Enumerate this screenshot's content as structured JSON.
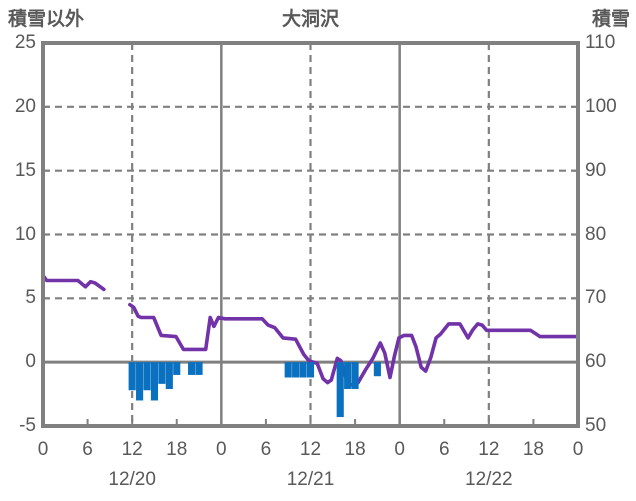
{
  "header": {
    "left_axis_title": "積雪以外",
    "chart_title": "大洞沢",
    "right_axis_title": "積雪"
  },
  "chart_data": {
    "type": "line",
    "title": "大洞沢",
    "left_axis": {
      "title": "積雪以外",
      "tick_labels": [
        "25",
        "20",
        "15",
        "10",
        "5",
        "0",
        "-5"
      ],
      "tick_values": [
        25,
        20,
        15,
        10,
        5,
        0,
        -5
      ],
      "range": [
        -5,
        25
      ]
    },
    "right_axis": {
      "title": "積雪",
      "tick_labels": [
        "110",
        "100",
        "90",
        "80",
        "70",
        "60",
        "50"
      ],
      "tick_values": [
        110,
        100,
        90,
        80,
        70,
        60,
        50
      ],
      "range": [
        50,
        110
      ]
    },
    "x_axis": {
      "range_hours": [
        0,
        72
      ],
      "tick_hours": [
        0,
        6,
        12,
        18,
        24,
        30,
        36,
        42,
        48,
        54,
        60,
        66,
        72
      ],
      "tick_labels": [
        "0",
        "6",
        "12",
        "18",
        "0",
        "6",
        "12",
        "18",
        "0",
        "6",
        "12",
        "18",
        "0"
      ],
      "date_labels": [
        {
          "label": "12/20",
          "hour": 12
        },
        {
          "label": "12/21",
          "hour": 36
        },
        {
          "label": "12/22",
          "hour": 60
        }
      ]
    },
    "gridlines": {
      "horizontal_dashed_values": [
        20,
        15,
        10,
        5
      ],
      "zero_line_value": 0,
      "vertical_dashed_hours": [
        12,
        36,
        60
      ],
      "vertical_solid_hours": [
        24,
        48
      ],
      "grid_color": "#808080"
    },
    "colors": {
      "line": "#7232a8",
      "bar": "#0a70c0",
      "border": "#808080",
      "text": "#595959"
    },
    "series": [
      {
        "name": "purple-line",
        "type": "line",
        "axis": "left",
        "color": "#7232a8",
        "segments": [
          [
            [
              0,
              6.8
            ],
            [
              0.5,
              6.4
            ],
            [
              4.7,
              6.4
            ],
            [
              5.7,
              5.9
            ],
            [
              6.4,
              6.3
            ],
            [
              7.0,
              6.2
            ],
            [
              8.2,
              5.7
            ]
          ],
          [
            [
              11.7,
              4.5
            ],
            [
              12.2,
              4.3
            ],
            [
              12.8,
              3.6
            ],
            [
              13.2,
              3.5
            ],
            [
              14.9,
              3.5
            ],
            [
              15.9,
              2.1
            ],
            [
              17.9,
              2.0
            ],
            [
              18.9,
              1.0
            ],
            [
              21.9,
              1.0
            ],
            [
              22.5,
              3.5
            ],
            [
              23.0,
              2.8
            ],
            [
              23.6,
              3.5
            ],
            [
              24.5,
              3.4
            ],
            [
              29.5,
              3.4
            ],
            [
              30.3,
              2.9
            ],
            [
              31.2,
              2.7
            ],
            [
              32.3,
              1.9
            ],
            [
              34.0,
              1.8
            ],
            [
              35.1,
              0.6
            ],
            [
              35.8,
              0.1
            ],
            [
              36.9,
              -0.1
            ],
            [
              37.7,
              -1.3
            ],
            [
              38.3,
              -1.6
            ],
            [
              38.8,
              -1.4
            ],
            [
              39.6,
              0.3
            ],
            [
              40.1,
              0.1
            ],
            [
              41.0,
              -1.7
            ],
            [
              41.7,
              -1.8
            ],
            [
              42.4,
              -1.6
            ],
            [
              43.4,
              -0.6
            ],
            [
              44.4,
              0.3
            ],
            [
              45.4,
              1.5
            ],
            [
              46.0,
              0.7
            ],
            [
              46.7,
              -1.2
            ],
            [
              47.3,
              0.5
            ],
            [
              47.9,
              1.9
            ],
            [
              48.6,
              2.1
            ],
            [
              49.6,
              2.1
            ],
            [
              50.2,
              1.2
            ],
            [
              50.9,
              -0.4
            ],
            [
              51.5,
              -0.7
            ],
            [
              52.2,
              0.4
            ],
            [
              52.9,
              1.9
            ],
            [
              53.5,
              2.2
            ],
            [
              54.6,
              3.0
            ],
            [
              56.1,
              3.0
            ],
            [
              56.7,
              2.4
            ],
            [
              57.2,
              1.9
            ],
            [
              57.8,
              2.5
            ],
            [
              58.5,
              3.0
            ],
            [
              59.1,
              2.9
            ],
            [
              59.7,
              2.5
            ],
            [
              65.6,
              2.5
            ],
            [
              66.9,
              2.0
            ],
            [
              71.8,
              2.0
            ]
          ]
        ]
      },
      {
        "name": "blue-bars",
        "type": "bar",
        "axis": "left",
        "color": "#0a70c0",
        "points": [
          [
            12,
            -2.2
          ],
          [
            13,
            -3.0
          ],
          [
            14,
            -2.2
          ],
          [
            15,
            -3.0
          ],
          [
            16,
            -1.7
          ],
          [
            17,
            -2.1
          ],
          [
            18,
            -1.0
          ],
          [
            20,
            -1.0
          ],
          [
            21,
            -1.0
          ],
          [
            33,
            -1.2
          ],
          [
            34,
            -1.2
          ],
          [
            35,
            -1.2
          ],
          [
            36,
            -1.2
          ],
          [
            40,
            -4.3
          ],
          [
            41,
            -2.1
          ],
          [
            42,
            -2.1
          ],
          [
            45,
            -1.1
          ]
        ]
      }
    ]
  }
}
